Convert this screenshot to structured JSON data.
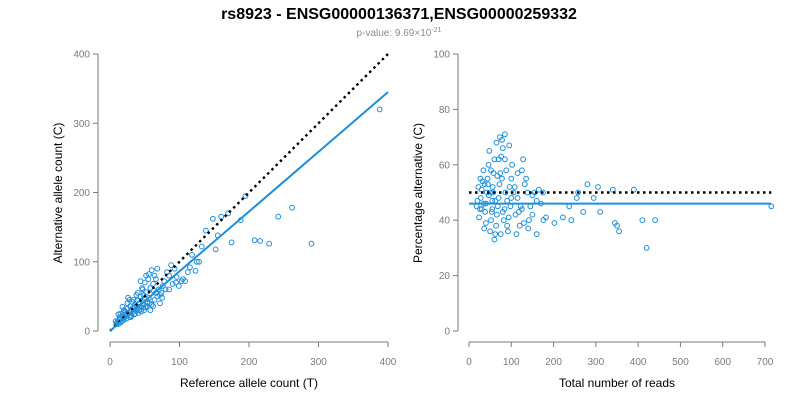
{
  "title": "rs8923 - ENSG00000136371,ENSG00000259332",
  "subtitle": {
    "prefix": "p-value: 9.69×10",
    "exponent": "-21"
  },
  "colors": {
    "points": "#1f8fd8",
    "fit": "#1f8fd8",
    "reference_line": "#000000",
    "axis": "#7a7a7a"
  },
  "chart_data": [
    {
      "type": "scatter",
      "xlabel": "Reference allele count (T)",
      "ylabel": "Alternative allele count (C)",
      "xlim": [
        0,
        400
      ],
      "ylim": [
        0,
        400
      ],
      "xticks": [
        "0",
        "100",
        "200",
        "300",
        "400"
      ],
      "yticks": [
        "0",
        "100",
        "200",
        "300",
        "400"
      ],
      "grid": false,
      "reference_line": {
        "style": "dotted",
        "points": [
          [
            0,
            0
          ],
          [
            400,
            400
          ]
        ]
      },
      "fit_line": {
        "style": "solid",
        "points": [
          [
            0,
            0
          ],
          [
            400,
            345
          ]
        ]
      },
      "points": [
        [
          388,
          320
        ],
        [
          290,
          126
        ],
        [
          262,
          178
        ],
        [
          242,
          165
        ],
        [
          229,
          126
        ],
        [
          216,
          130
        ],
        [
          208,
          131
        ],
        [
          195,
          195
        ],
        [
          188,
          160
        ],
        [
          175,
          128
        ],
        [
          170,
          170
        ],
        [
          160,
          165
        ],
        [
          155,
          138
        ],
        [
          152,
          118
        ],
        [
          148,
          162
        ],
        [
          138,
          145
        ],
        [
          132,
          122
        ],
        [
          128,
          100
        ],
        [
          123,
          87
        ],
        [
          118,
          110
        ],
        [
          112,
          85
        ],
        [
          108,
          72
        ],
        [
          103,
          72
        ],
        [
          99,
          65
        ],
        [
          96,
          78
        ],
        [
          93,
          90
        ],
        [
          90,
          68
        ],
        [
          88,
          95
        ],
        [
          85,
          80
        ],
        [
          82,
          85
        ],
        [
          80,
          60
        ],
        [
          78,
          72
        ],
        [
          76,
          65
        ],
        [
          74,
          55
        ],
        [
          72,
          52
        ],
        [
          70,
          60
        ],
        [
          68,
          50
        ],
        [
          66,
          55
        ],
        [
          64,
          45
        ],
        [
          63,
          58
        ],
        [
          62,
          68
        ],
        [
          60,
          38
        ],
        [
          58,
          62
        ],
        [
          57,
          40
        ],
        [
          56,
          48
        ],
        [
          55,
          75
        ],
        [
          54,
          42
        ],
        [
          53,
          36
        ],
        [
          52,
          56
        ],
        [
          51,
          34
        ],
        [
          50,
          46
        ],
        [
          49,
          30
        ],
        [
          48,
          52
        ],
        [
          47,
          38
        ],
        [
          46,
          44
        ],
        [
          45,
          28
        ],
        [
          44,
          50
        ],
        [
          43,
          35
        ],
        [
          42,
          40
        ],
        [
          41,
          26
        ],
        [
          40,
          32
        ],
        [
          39,
          44
        ],
        [
          38,
          36
        ],
        [
          37,
          30
        ],
        [
          36,
          38
        ],
        [
          35,
          24
        ],
        [
          34,
          28
        ],
        [
          33,
          33
        ],
        [
          32,
          42
        ],
        [
          31,
          22
        ],
        [
          30,
          30
        ],
        [
          29,
          36
        ],
        [
          28,
          20
        ],
        [
          27,
          26
        ],
        [
          26,
          48
        ],
        [
          25,
          32
        ],
        [
          24,
          18
        ],
        [
          23,
          24
        ],
        [
          22,
          28
        ],
        [
          21,
          20
        ],
        [
          20,
          16
        ],
        [
          19,
          26
        ],
        [
          18,
          22
        ],
        [
          17,
          14
        ],
        [
          16,
          18
        ],
        [
          15,
          12
        ],
        [
          14,
          20
        ],
        [
          13,
          16
        ],
        [
          12,
          10
        ],
        [
          11,
          14
        ],
        [
          10,
          12
        ],
        [
          56,
          82
        ],
        [
          60,
          88
        ],
        [
          64,
          80
        ],
        [
          47,
          60
        ],
        [
          50,
          70
        ],
        [
          34,
          45
        ],
        [
          38,
          52
        ],
        [
          25,
          40
        ],
        [
          28,
          45
        ],
        [
          44,
          72
        ],
        [
          52,
          80
        ],
        [
          66,
          75
        ],
        [
          68,
          90
        ],
        [
          72,
          40
        ],
        [
          40,
          55
        ],
        [
          46,
          62
        ],
        [
          30,
          20
        ],
        [
          36,
          25
        ],
        [
          42,
          30
        ],
        [
          48,
          34
        ],
        [
          54,
          40
        ],
        [
          58,
          30
        ],
        [
          62,
          36
        ],
        [
          20,
          30
        ],
        [
          15,
          25
        ],
        [
          18,
          35
        ],
        [
          12,
          24
        ],
        [
          9,
          10
        ],
        [
          8,
          14
        ],
        [
          75,
          48
        ],
        [
          85,
          60
        ],
        [
          95,
          70
        ],
        [
          105,
          75
        ],
        [
          115,
          92
        ],
        [
          125,
          100
        ]
      ]
    },
    {
      "type": "scatter",
      "xlabel": "Total number of reads",
      "ylabel": "Percentage alternative (C)",
      "xlim": [
        0,
        700
      ],
      "ylim": [
        0,
        100
      ],
      "xticks": [
        "0",
        "100",
        "200",
        "300",
        "400",
        "500",
        "600",
        "700"
      ],
      "yticks": [
        "0",
        "20",
        "40",
        "60",
        "80",
        "100"
      ],
      "grid": false,
      "reference_line": {
        "style": "dotted",
        "y": 50
      },
      "fit_line": {
        "style": "solid",
        "y": 46
      },
      "points": [
        [
          715,
          45
        ],
        [
          440,
          40
        ],
        [
          420,
          30
        ],
        [
          410,
          40
        ],
        [
          390,
          51
        ],
        [
          355,
          36
        ],
        [
          350,
          38
        ],
        [
          345,
          39
        ],
        [
          340,
          51
        ],
        [
          310,
          43
        ],
        [
          305,
          52
        ],
        [
          295,
          48
        ],
        [
          280,
          53
        ],
        [
          270,
          43
        ],
        [
          258,
          50
        ],
        [
          255,
          48
        ],
        [
          242,
          40
        ],
        [
          237,
          45
        ],
        [
          222,
          41
        ],
        [
          202,
          39
        ],
        [
          182,
          41
        ],
        [
          176,
          40
        ],
        [
          170,
          46
        ],
        [
          165,
          51
        ],
        [
          160,
          35
        ],
        [
          155,
          50
        ],
        [
          150,
          49
        ],
        [
          145,
          45
        ],
        [
          142,
          40
        ],
        [
          138,
          50
        ],
        [
          135,
          55
        ],
        [
          132,
          53
        ],
        [
          128,
          62
        ],
        [
          125,
          58
        ],
        [
          122,
          45
        ],
        [
          120,
          38
        ],
        [
          118,
          43
        ],
        [
          115,
          48
        ],
        [
          112,
          35
        ],
        [
          110,
          42
        ],
        [
          105,
          50
        ],
        [
          102,
          60
        ],
        [
          100,
          55
        ],
        [
          98,
          45
        ],
        [
          96,
          52
        ],
        [
          94,
          41
        ],
        [
          92,
          36
        ],
        [
          90,
          47
        ],
        [
          88,
          58
        ],
        [
          86,
          50
        ],
        [
          84,
          44
        ],
        [
          82,
          40
        ],
        [
          80,
          66
        ],
        [
          78,
          69
        ],
        [
          76,
          63
        ],
        [
          74,
          57
        ],
        [
          72,
          53
        ],
        [
          70,
          48
        ],
        [
          68,
          45
        ],
        [
          66,
          42
        ],
        [
          64,
          38
        ],
        [
          62,
          35
        ],
        [
          60,
          62
        ],
        [
          58,
          57
        ],
        [
          56,
          52
        ],
        [
          55,
          47
        ],
        [
          54,
          43
        ],
        [
          52,
          40
        ],
        [
          50,
          36
        ],
        [
          48,
          65
        ],
        [
          46,
          60
        ],
        [
          44,
          55
        ],
        [
          42,
          50
        ],
        [
          40,
          46
        ],
        [
          38,
          43
        ],
        [
          36,
          37
        ],
        [
          34,
          58
        ],
        [
          32,
          54
        ],
        [
          30,
          51
        ],
        [
          28,
          48
        ],
        [
          26,
          44
        ],
        [
          24,
          41
        ],
        [
          22,
          52
        ],
        [
          20,
          47
        ],
        [
          60,
          33
        ],
        [
          75,
          35
        ],
        [
          85,
          62
        ],
        [
          95,
          67
        ],
        [
          65,
          68
        ],
        [
          70,
          62
        ],
        [
          45,
          53
        ],
        [
          50,
          50
        ],
        [
          35,
          46
        ],
        [
          55,
          44
        ],
        [
          80,
          43
        ],
        [
          100,
          48
        ],
        [
          108,
          52
        ],
        [
          90,
          38
        ],
        [
          78,
          55
        ],
        [
          62,
          47
        ],
        [
          52,
          58
        ],
        [
          40,
          39
        ],
        [
          30,
          44
        ],
        [
          125,
          44
        ],
        [
          140,
          37
        ],
        [
          150,
          42
        ],
        [
          160,
          47
        ],
        [
          175,
          50
        ],
        [
          115,
          57
        ],
        [
          130,
          39
        ],
        [
          85,
          71
        ],
        [
          73,
          70
        ],
        [
          67,
          56
        ],
        [
          57,
          50
        ],
        [
          47,
          49
        ],
        [
          37,
          53
        ],
        [
          27,
          55
        ],
        [
          18,
          45
        ]
      ]
    }
  ]
}
